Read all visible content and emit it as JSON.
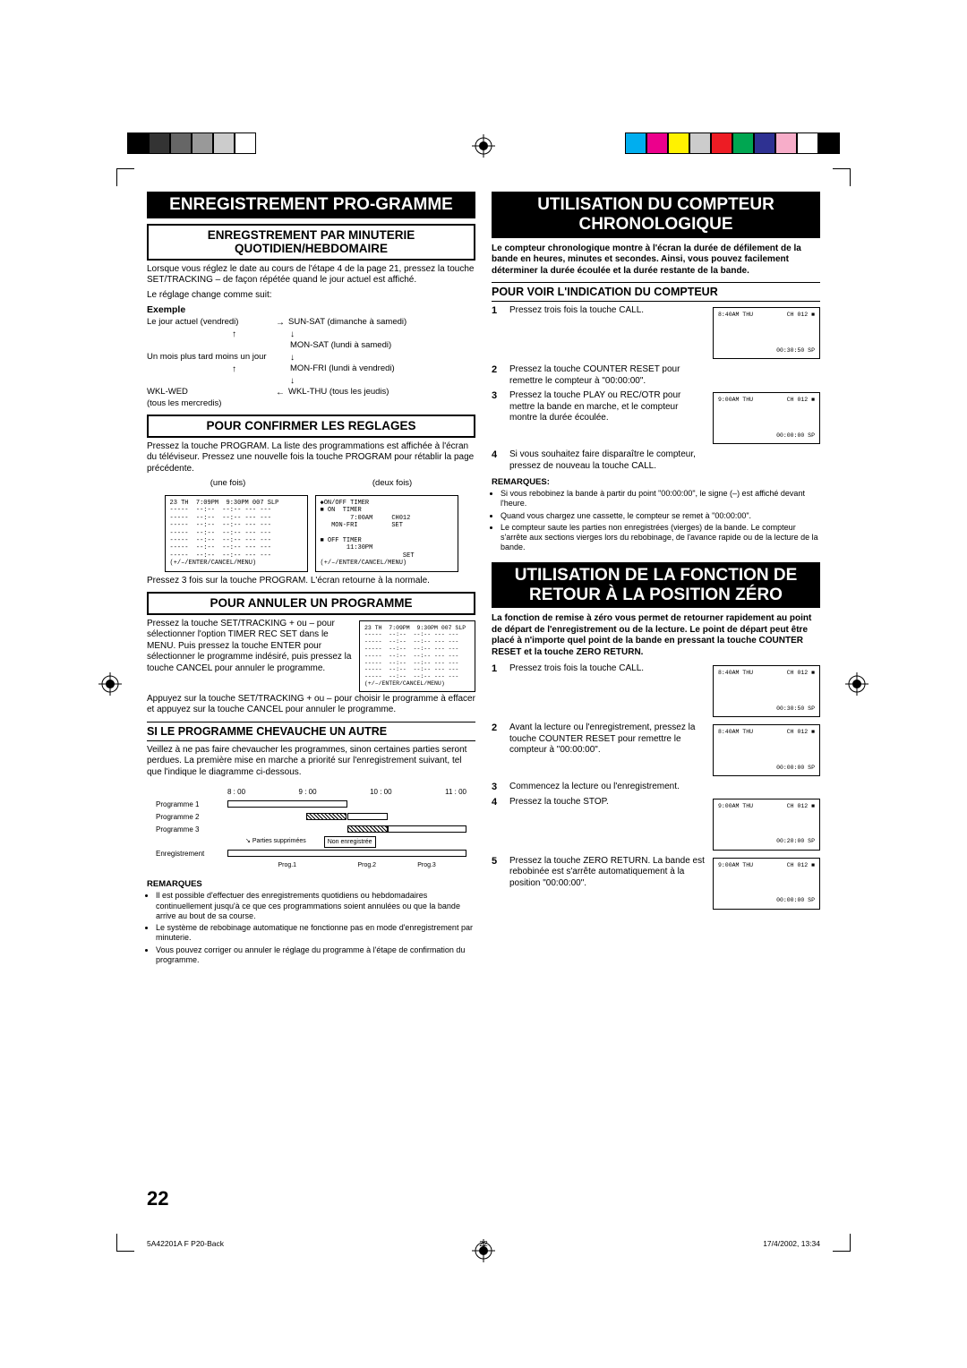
{
  "color_bars": {
    "left": [
      "#000000",
      "#333333",
      "#666666",
      "#999999",
      "#cccccc",
      "#ffffff"
    ],
    "right": [
      "#00aeef",
      "#ec008c",
      "#fff200",
      "#cccccc",
      "#ed1c24",
      "#00a651",
      "#2e3192",
      "#f7adc9",
      "#ffffff",
      "#000000"
    ]
  },
  "left": {
    "main_title": "ENREGISTREMENT PRO-GRAMME",
    "sec1": {
      "title": "ENREGSTREMENT PAR MINUTERIE QUOTIDIEN/HEBDOMAIRE",
      "p1": "Lorsque vous réglez le date au cours de l'étape 4 de la page 21, pressez la touche SET/TRACKING – de façon répétée quand le jour actuel est affiché.",
      "p2": "Le réglage change comme suit:",
      "example_label": "Exemple",
      "flow": {
        "r1l": "Le jour actuel (vendredi)",
        "r1a": "→",
        "r1r": "SUN-SAT (dimanche à samedi)",
        "r2r": "MON-SAT (lundi à samedi)",
        "r3l": "Un mois plus tard moins un jour",
        "r4r": "MON-FRI (lundi à vendredi)",
        "r5l": "WKL-WED",
        "r5a": "←",
        "r5r": "WKL-THU (tous les jeudis)",
        "r6l": "(tous les mercredis)"
      }
    },
    "sec2": {
      "title": "POUR CONFIRMER LES REGLAGES",
      "p1": "Pressez la touche PROGRAM. La liste des programmations est affichée à l'écran du téléviseur. Pressez une nouvelle fois la touche PROGRAM pour rétablir la page précédente.",
      "once": "(une fois)",
      "twice": "(deux fois)",
      "screen1": "23 TH  7:09PM  9:30PM 007 SLP\n-----  --:--  --:-- --- ---\n-----  --:--  --:-- --- ---\n-----  --:--  --:-- --- ---\n-----  --:--  --:-- --- ---\n-----  --:--  --:-- --- ---\n-----  --:--  --:-- --- ---\n-----  --:--  --:-- --- ---\n(+/–/ENTER/CANCEL/MENU)",
      "screen2": "◆ON/OFF TIMER\n■ ON  TIMER\n        7:00AM     CH012\n   MON-FRI         SET\n\n■ OFF TIMER\n       11:30PM\n                      SET\n(+/–/ENTER/CANCEL/MENU)",
      "p2": "Pressez 3 fois sur la touche PROGRAM. L'écran retourne à la normale."
    },
    "sec3": {
      "title": "POUR ANNULER UN PROGRAMME",
      "p1": "Pressez la touche SET/TRACKING + ou – pour sélectionner l'option TIMER REC SET dans le MENU. Puis pressez la touche ENTER pour sélectionner le programme indésiré, puis pressez la touche CANCEL pour annuler le programme.",
      "screen": "23 TH  7:09PM  9:30PM 007 SLP\n-----  --:--  --:-- --- ---\n-----  --:--  --:-- --- ---\n-----  --:--  --:-- --- ---\n-----  --:--  --:-- --- ---\n-----  --:--  --:-- --- ---\n-----  --:--  --:-- --- ---\n-----  --:--  --:-- --- ---\n(+/–/ENTER/CANCEL/MENU)",
      "p2": "Appuyez sur la touche SET/TRACKING + ou – pour choisir le programme à effacer et appuyez sur la touche CANCEL pour annuler le programme."
    },
    "sec4": {
      "title": "SI LE PROGRAMME CHEVAUCHE UN AUTRE",
      "p1": "Veillez à ne pas faire chevaucher les programmes, sinon certaines parties seront perdues. La première mise en marche a priorité sur l'enregistrement suivant, tel que l'indique le diagramme ci-dessous.",
      "times": [
        "8 : 00",
        "9 : 00",
        "10 : 00",
        "11 : 00"
      ],
      "rows": [
        "Programme 1",
        "Programme 2",
        "Programme 3",
        "Enregistrement"
      ],
      "deleted": "Parties supprimées",
      "notrec": "Non enregistrée",
      "progs": [
        "Prog.1",
        "Prog.2",
        "Prog.3"
      ]
    },
    "notes_label": "REMARQUES",
    "notes": [
      "Il est possible d'effectuer des enregistrements quotidiens ou hebdomadaires continuellement jusqu'à ce que ces programmations soient annulées ou que la bande arrive au bout de sa course.",
      "Le système de rebobinage automatique ne fonctionne pas en mode d'enregistrement par minuterie.",
      "Vous pouvez corriger ou annuler le réglage du programme à l'étape de confirmation du programme."
    ]
  },
  "right": {
    "main1": "UTILISATION DU COMPTEUR CHRONOLOGIQUE",
    "intro1": "Le compteur chronologique montre à l'écran la durée de défilement de la bande en heures, minutes et secondes. Ainsi, vous pouvez facilement déterminer la durée écoulée et la durée restante de la bande.",
    "sub1": "POUR VOIR L'INDICATION DU COMPTEUR",
    "steps1": [
      {
        "n": "1",
        "t": "Pressez trois fois la touche CALL.",
        "s": {
          "tl": "8:40AM  THU",
          "tr": "CH 012",
          "bl": "",
          "br": "00:30:50  SP"
        }
      },
      {
        "n": "2",
        "t": "Pressez la touche COUNTER RESET pour remettre le compteur à \"00:00:00\"."
      },
      {
        "n": "3",
        "t": "Pressez la touche PLAY ou REC/OTR pour mettre la bande en marche, et le compteur montre la durée écoulée.",
        "s": {
          "tl": "9:00AM  THU",
          "tr": "CH 012",
          "bl": "",
          "br": "00:00:00  SP"
        }
      },
      {
        "n": "4",
        "t": "Si vous souhaitez faire disparaître le compteur, pressez de nouveau la touche CALL."
      }
    ],
    "notes_label": "REMARQUES:",
    "notes1": [
      "Si vous rebobinez la bande à partir du point \"00:00:00\", le signe (–) est affiché devant l'heure.",
      "Quand vous chargez une cassette, le compteur se remet à \"00:00:00\".",
      "Le compteur saute les parties non enregistrées (vierges) de la bande. Le compteur s'arrête aux sections vierges lors du rebobinage, de l'avance rapide ou de la lecture de la bande."
    ],
    "main2": "UTILISATION DE LA FONCTION DE RETOUR À LA POSITION ZÉRO",
    "intro2": "La fonction de remise à zéro vous permet de retourner rapidement au point de départ de l'enregistrement ou de la lecture. Le point de départ peut être placé à n'importe quel point de la bande en pressant la touche COUNTER RESET et la touche ZERO RETURN.",
    "steps2": [
      {
        "n": "1",
        "t": "Pressez trois fois la touche CALL.",
        "s": {
          "tl": "8:40AM  THU",
          "tr": "CH 012",
          "br": "00:30:50  SP"
        }
      },
      {
        "n": "2",
        "t": "Avant la lecture ou l'enregistrement, pressez la touche COUNTER RESET pour remettre le compteur à \"00:00:00\".",
        "s": {
          "tl": "8:40AM  THU",
          "tr": "CH 012",
          "br": "00:00:00  SP"
        }
      },
      {
        "n": "3",
        "t": "Commencez la lecture ou l'enregistrement."
      },
      {
        "n": "4",
        "t": "Pressez la touche STOP.",
        "s": {
          "tl": "9:00AM  THU",
          "tr": "CH 012",
          "br": "00:20:00  SP"
        }
      },
      {
        "n": "5",
        "t": "Pressez la touche ZERO RETURN. La bande est rebobinée est s'arrête automatiquement à la position \"00:00:00\".",
        "s": {
          "tl": "9:00AM  THU",
          "tr": "CH 012",
          "br": "00:00:00  SP"
        }
      }
    ]
  },
  "page_num": "22",
  "footer": {
    "l": "5A42201A F P20-Back",
    "c": "22",
    "r": "17/4/2002, 13:34"
  }
}
